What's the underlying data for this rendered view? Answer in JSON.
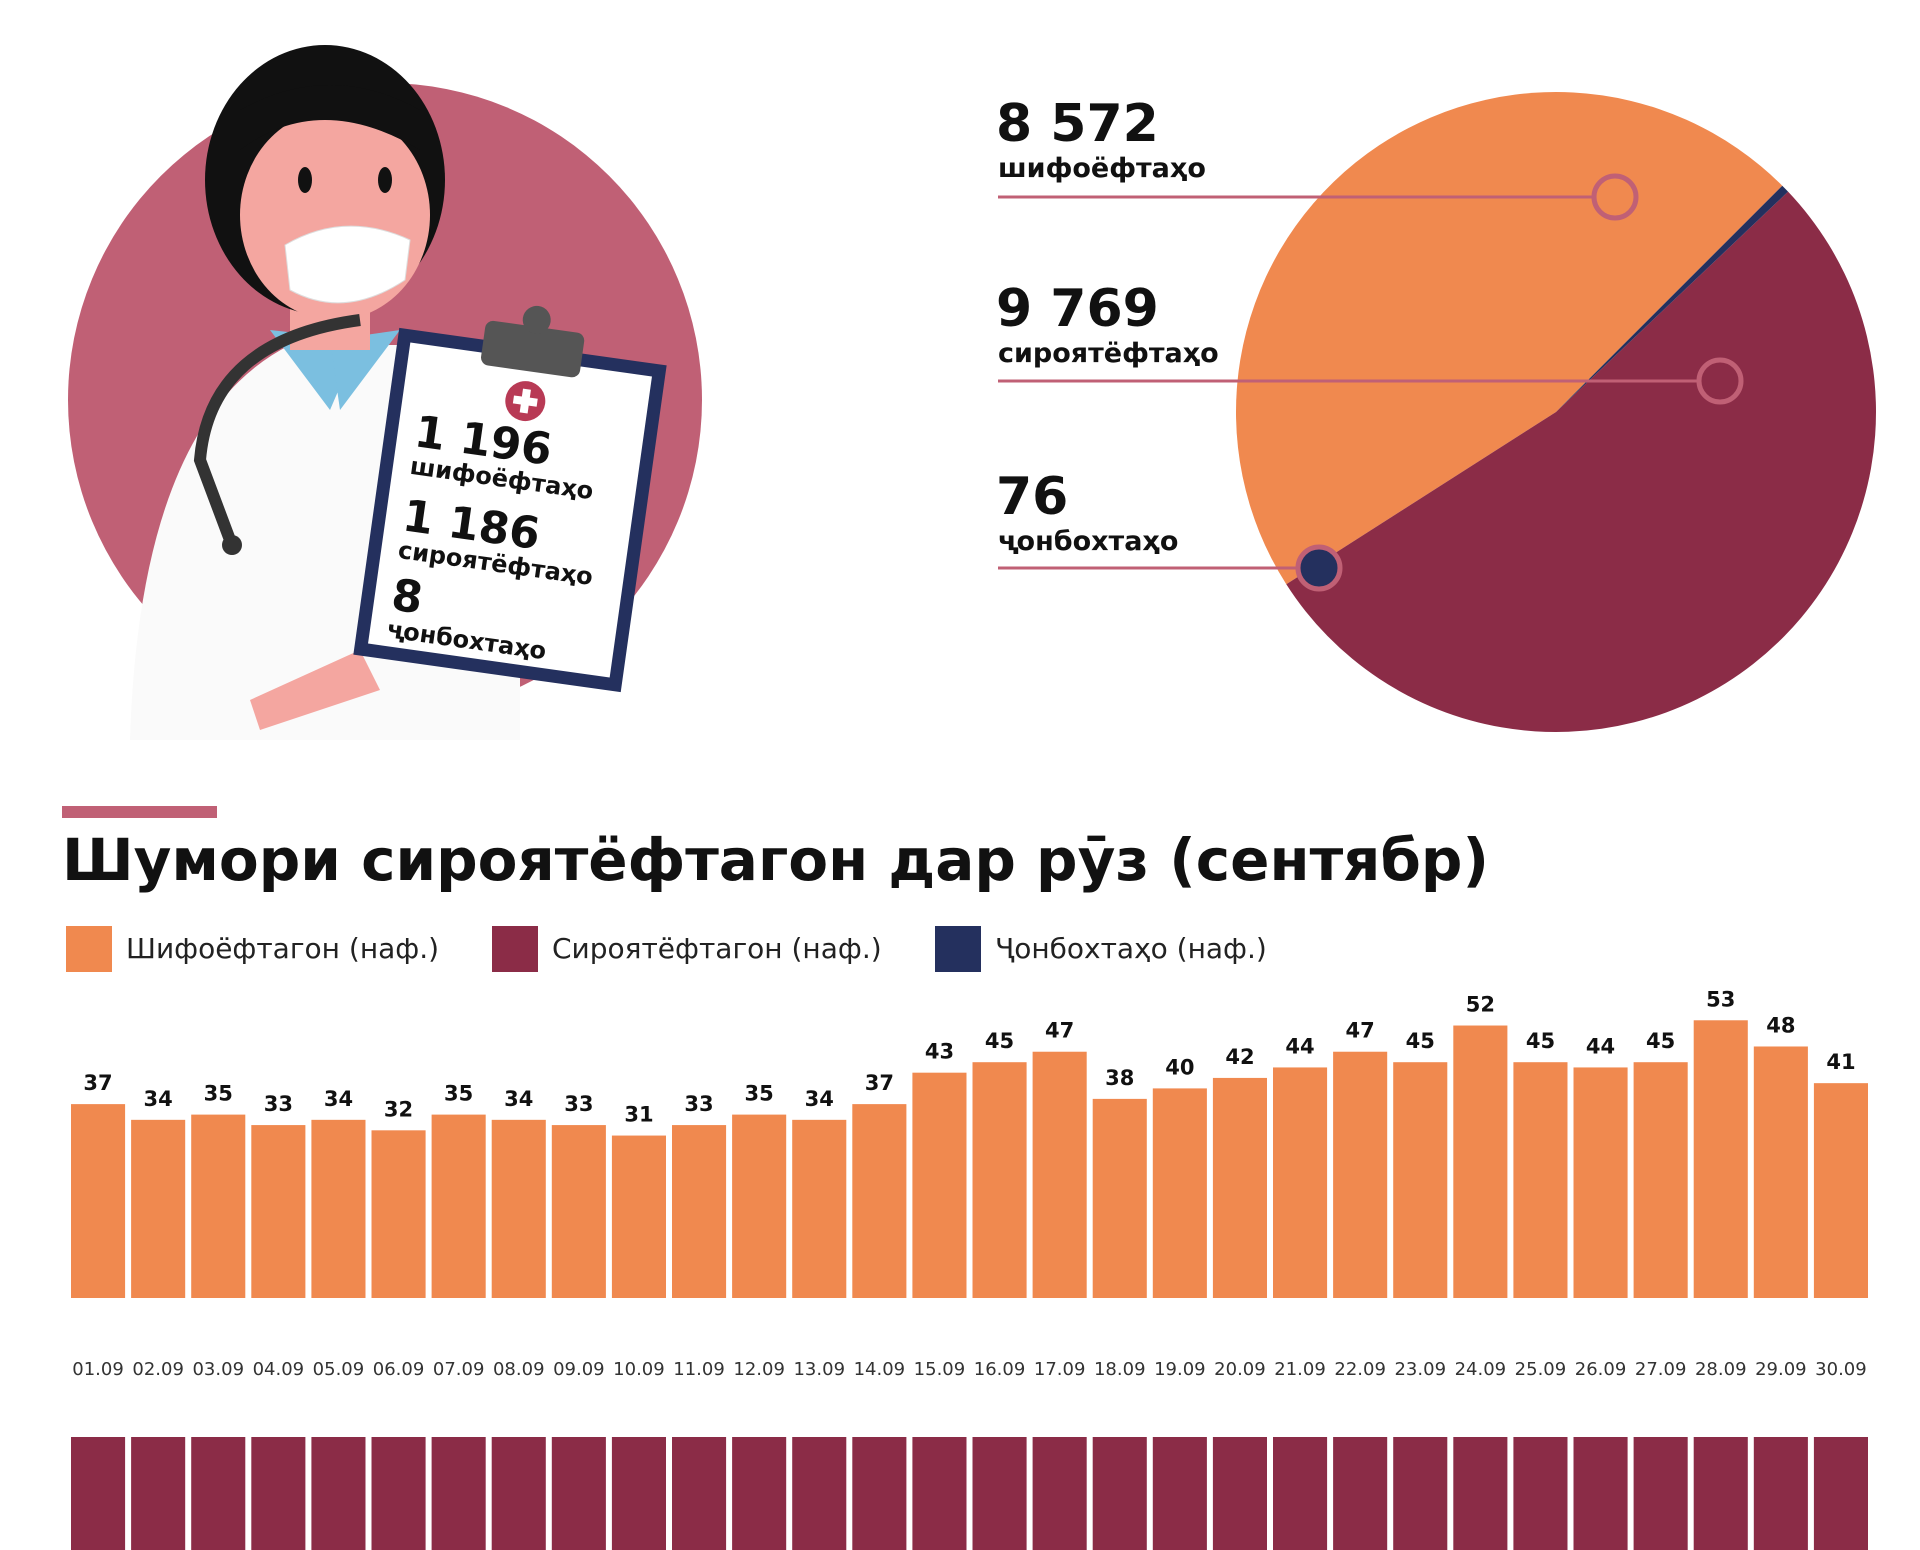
{
  "clipboard": {
    "items": [
      {
        "value": "1 196",
        "label": "шифоёфтаҳо"
      },
      {
        "value": "1 186",
        "label": "сироятёфтаҳо"
      },
      {
        "value": "8",
        "label": "ҷонбохтаҳо"
      }
    ]
  },
  "chart_data": [
    {
      "type": "pie",
      "categories": [
        "шифоёфтаҳо",
        "сироятёфтаҳо",
        "ҷонбохтаҳо"
      ],
      "values": [
        8572,
        9769,
        76
      ],
      "value_labels": [
        "8 572",
        "9 769",
        "76"
      ],
      "colors": [
        "#f0894f",
        "#8b2c47",
        "#24305e"
      ]
    },
    {
      "type": "bar",
      "title": "Шумори сироятёфтагон дар рӯз (сентябр)",
      "legend": [
        {
          "name": "Шифоёфтагон (наф.)",
          "color": "#f0894f"
        },
        {
          "name": "Сироятёфтагон (наф.)",
          "color": "#8b2c47"
        },
        {
          "name": "Ҷонбохтаҳо (наф.)",
          "color": "#24305e"
        }
      ],
      "categories": [
        "01.09",
        "02.09",
        "03.09",
        "04.09",
        "05.09",
        "06.09",
        "07.09",
        "08.09",
        "09.09",
        "10.09",
        "11.09",
        "12.09",
        "13.09",
        "14.09",
        "15.09",
        "16.09",
        "17.09",
        "18.09",
        "19.09",
        "20.09",
        "21.09",
        "22.09",
        "23.09",
        "24.09",
        "25.09",
        "26.09",
        "27.09",
        "28.09",
        "29.09",
        "30.09"
      ],
      "series": [
        {
          "name": "Шифоёфтагон (наф.)",
          "color": "#f0894f",
          "values": [
            37,
            34,
            35,
            33,
            34,
            32,
            35,
            34,
            33,
            31,
            33,
            35,
            34,
            37,
            43,
            45,
            47,
            38,
            40,
            42,
            44,
            47,
            45,
            52,
            45,
            44,
            45,
            53,
            48,
            41
          ]
        }
      ]
    }
  ]
}
